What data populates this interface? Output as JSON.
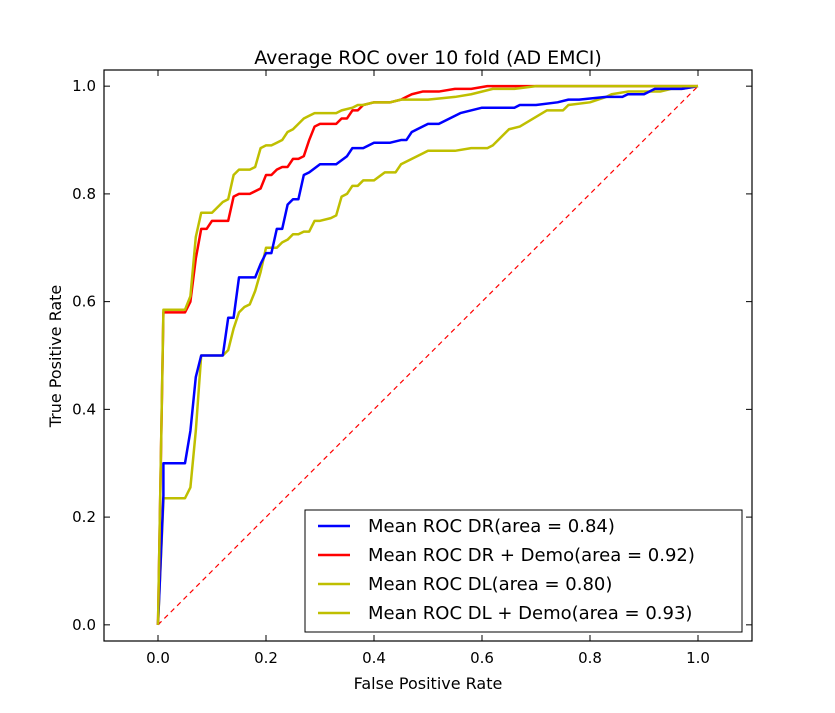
{
  "chart_data": {
    "type": "line",
    "title": "Average ROC over 10 fold (AD EMCI)",
    "xlabel": "False Positive Rate",
    "ylabel": "True Positive Rate",
    "xlim": [
      -0.1,
      1.1
    ],
    "ylim": [
      -0.03,
      1.03
    ],
    "xticks": [
      0.0,
      0.2,
      0.4,
      0.6,
      0.8,
      1.0
    ],
    "xtick_labels": [
      "0.0",
      "0.2",
      "0.4",
      "0.6",
      "0.8",
      "1.0"
    ],
    "yticks": [
      0.0,
      0.2,
      0.4,
      0.6,
      0.8,
      1.0
    ],
    "ytick_labels": [
      "0.0",
      "0.2",
      "0.4",
      "0.6",
      "0.8",
      "1.0"
    ],
    "grid": false,
    "legend_position": "lower-right",
    "series": [
      {
        "name": "Mean ROC DR(area = 0.84)",
        "color": "#0000ff",
        "style": "solid",
        "x": [
          0.0,
          0.01,
          0.01,
          0.05,
          0.06,
          0.07,
          0.08,
          0.09,
          0.12,
          0.13,
          0.14,
          0.15,
          0.18,
          0.19,
          0.2,
          0.21,
          0.22,
          0.23,
          0.24,
          0.25,
          0.26,
          0.27,
          0.28,
          0.3,
          0.33,
          0.35,
          0.36,
          0.38,
          0.4,
          0.43,
          0.45,
          0.46,
          0.47,
          0.48,
          0.5,
          0.52,
          0.54,
          0.56,
          0.6,
          0.66,
          0.67,
          0.7,
          0.74,
          0.76,
          0.78,
          0.83,
          0.86,
          0.87,
          0.9,
          0.92,
          0.95,
          0.97,
          1.0
        ],
        "y": [
          0.0,
          0.24,
          0.3,
          0.3,
          0.36,
          0.46,
          0.5,
          0.5,
          0.5,
          0.57,
          0.57,
          0.645,
          0.645,
          0.67,
          0.69,
          0.69,
          0.735,
          0.735,
          0.78,
          0.79,
          0.79,
          0.835,
          0.84,
          0.855,
          0.855,
          0.87,
          0.885,
          0.885,
          0.895,
          0.895,
          0.9,
          0.9,
          0.915,
          0.92,
          0.93,
          0.93,
          0.94,
          0.95,
          0.96,
          0.96,
          0.965,
          0.965,
          0.97,
          0.975,
          0.975,
          0.98,
          0.98,
          0.985,
          0.985,
          0.995,
          0.995,
          0.995,
          1.0
        ]
      },
      {
        "name": "Mean ROC DR + Demo(area = 0.92)",
        "color": "#ff0000",
        "style": "solid",
        "x": [
          0.0,
          0.01,
          0.01,
          0.05,
          0.06,
          0.07,
          0.08,
          0.09,
          0.1,
          0.13,
          0.14,
          0.15,
          0.17,
          0.19,
          0.2,
          0.21,
          0.22,
          0.23,
          0.24,
          0.25,
          0.26,
          0.27,
          0.28,
          0.29,
          0.3,
          0.33,
          0.34,
          0.35,
          0.36,
          0.37,
          0.38,
          0.4,
          0.43,
          0.45,
          0.46,
          0.47,
          0.49,
          0.52,
          0.55,
          0.58,
          0.61,
          0.64,
          0.67,
          0.7,
          1.0
        ],
        "y": [
          0.0,
          0.58,
          0.58,
          0.58,
          0.6,
          0.68,
          0.735,
          0.735,
          0.75,
          0.75,
          0.795,
          0.8,
          0.8,
          0.81,
          0.835,
          0.835,
          0.845,
          0.85,
          0.85,
          0.865,
          0.865,
          0.87,
          0.9,
          0.925,
          0.93,
          0.93,
          0.94,
          0.94,
          0.955,
          0.955,
          0.965,
          0.97,
          0.97,
          0.975,
          0.98,
          0.985,
          0.99,
          0.99,
          0.995,
          0.995,
          1.0,
          1.0,
          1.0,
          1.0,
          1.0
        ]
      },
      {
        "name": "Mean ROC DL(area = 0.80)",
        "color": "#bfbf00",
        "style": "solid",
        "x": [
          0.0,
          0.01,
          0.01,
          0.05,
          0.06,
          0.07,
          0.08,
          0.12,
          0.13,
          0.14,
          0.15,
          0.16,
          0.17,
          0.18,
          0.19,
          0.2,
          0.22,
          0.23,
          0.24,
          0.25,
          0.26,
          0.27,
          0.28,
          0.29,
          0.3,
          0.32,
          0.33,
          0.34,
          0.35,
          0.36,
          0.37,
          0.38,
          0.4,
          0.42,
          0.44,
          0.45,
          0.47,
          0.49,
          0.5,
          0.55,
          0.58,
          0.61,
          0.62,
          0.63,
          0.64,
          0.65,
          0.67,
          0.72,
          0.73,
          0.75,
          0.76,
          0.8,
          0.83,
          0.84,
          0.87,
          0.93,
          0.95,
          0.97,
          1.0
        ],
        "y": [
          0.0,
          0.23,
          0.235,
          0.235,
          0.255,
          0.36,
          0.5,
          0.5,
          0.51,
          0.55,
          0.58,
          0.59,
          0.595,
          0.62,
          0.655,
          0.7,
          0.7,
          0.71,
          0.715,
          0.725,
          0.725,
          0.73,
          0.73,
          0.75,
          0.75,
          0.755,
          0.76,
          0.795,
          0.8,
          0.815,
          0.815,
          0.825,
          0.825,
          0.84,
          0.84,
          0.855,
          0.865,
          0.875,
          0.88,
          0.88,
          0.885,
          0.885,
          0.89,
          0.9,
          0.91,
          0.92,
          0.925,
          0.955,
          0.955,
          0.955,
          0.965,
          0.97,
          0.98,
          0.985,
          0.99,
          0.99,
          0.995,
          0.995,
          1.0
        ]
      },
      {
        "name": "Mean ROC DL + Demo(area = 0.93)",
        "color": "#bfbf00",
        "style": "solid",
        "x": [
          0.0,
          0.01,
          0.01,
          0.05,
          0.06,
          0.07,
          0.08,
          0.1,
          0.11,
          0.12,
          0.13,
          0.14,
          0.15,
          0.17,
          0.18,
          0.19,
          0.2,
          0.21,
          0.22,
          0.23,
          0.24,
          0.25,
          0.26,
          0.27,
          0.28,
          0.29,
          0.3,
          0.33,
          0.34,
          0.36,
          0.37,
          0.38,
          0.4,
          0.43,
          0.45,
          0.47,
          0.48,
          0.5,
          0.55,
          0.58,
          0.62,
          0.66,
          0.7,
          0.75,
          0.8,
          0.85,
          0.9,
          1.0
        ],
        "y": [
          0.0,
          0.585,
          0.585,
          0.585,
          0.61,
          0.72,
          0.765,
          0.765,
          0.775,
          0.785,
          0.79,
          0.835,
          0.845,
          0.845,
          0.85,
          0.885,
          0.89,
          0.89,
          0.895,
          0.9,
          0.915,
          0.92,
          0.93,
          0.94,
          0.945,
          0.95,
          0.95,
          0.95,
          0.955,
          0.96,
          0.965,
          0.965,
          0.97,
          0.97,
          0.975,
          0.975,
          0.975,
          0.975,
          0.98,
          0.985,
          0.995,
          0.995,
          1.0,
          1.0,
          1.0,
          1.0,
          1.0,
          1.0
        ]
      },
      {
        "name": "",
        "color": "#ff0000",
        "style": "dashed",
        "x": [
          0.0,
          1.0
        ],
        "y": [
          0.0,
          1.0
        ]
      }
    ]
  }
}
